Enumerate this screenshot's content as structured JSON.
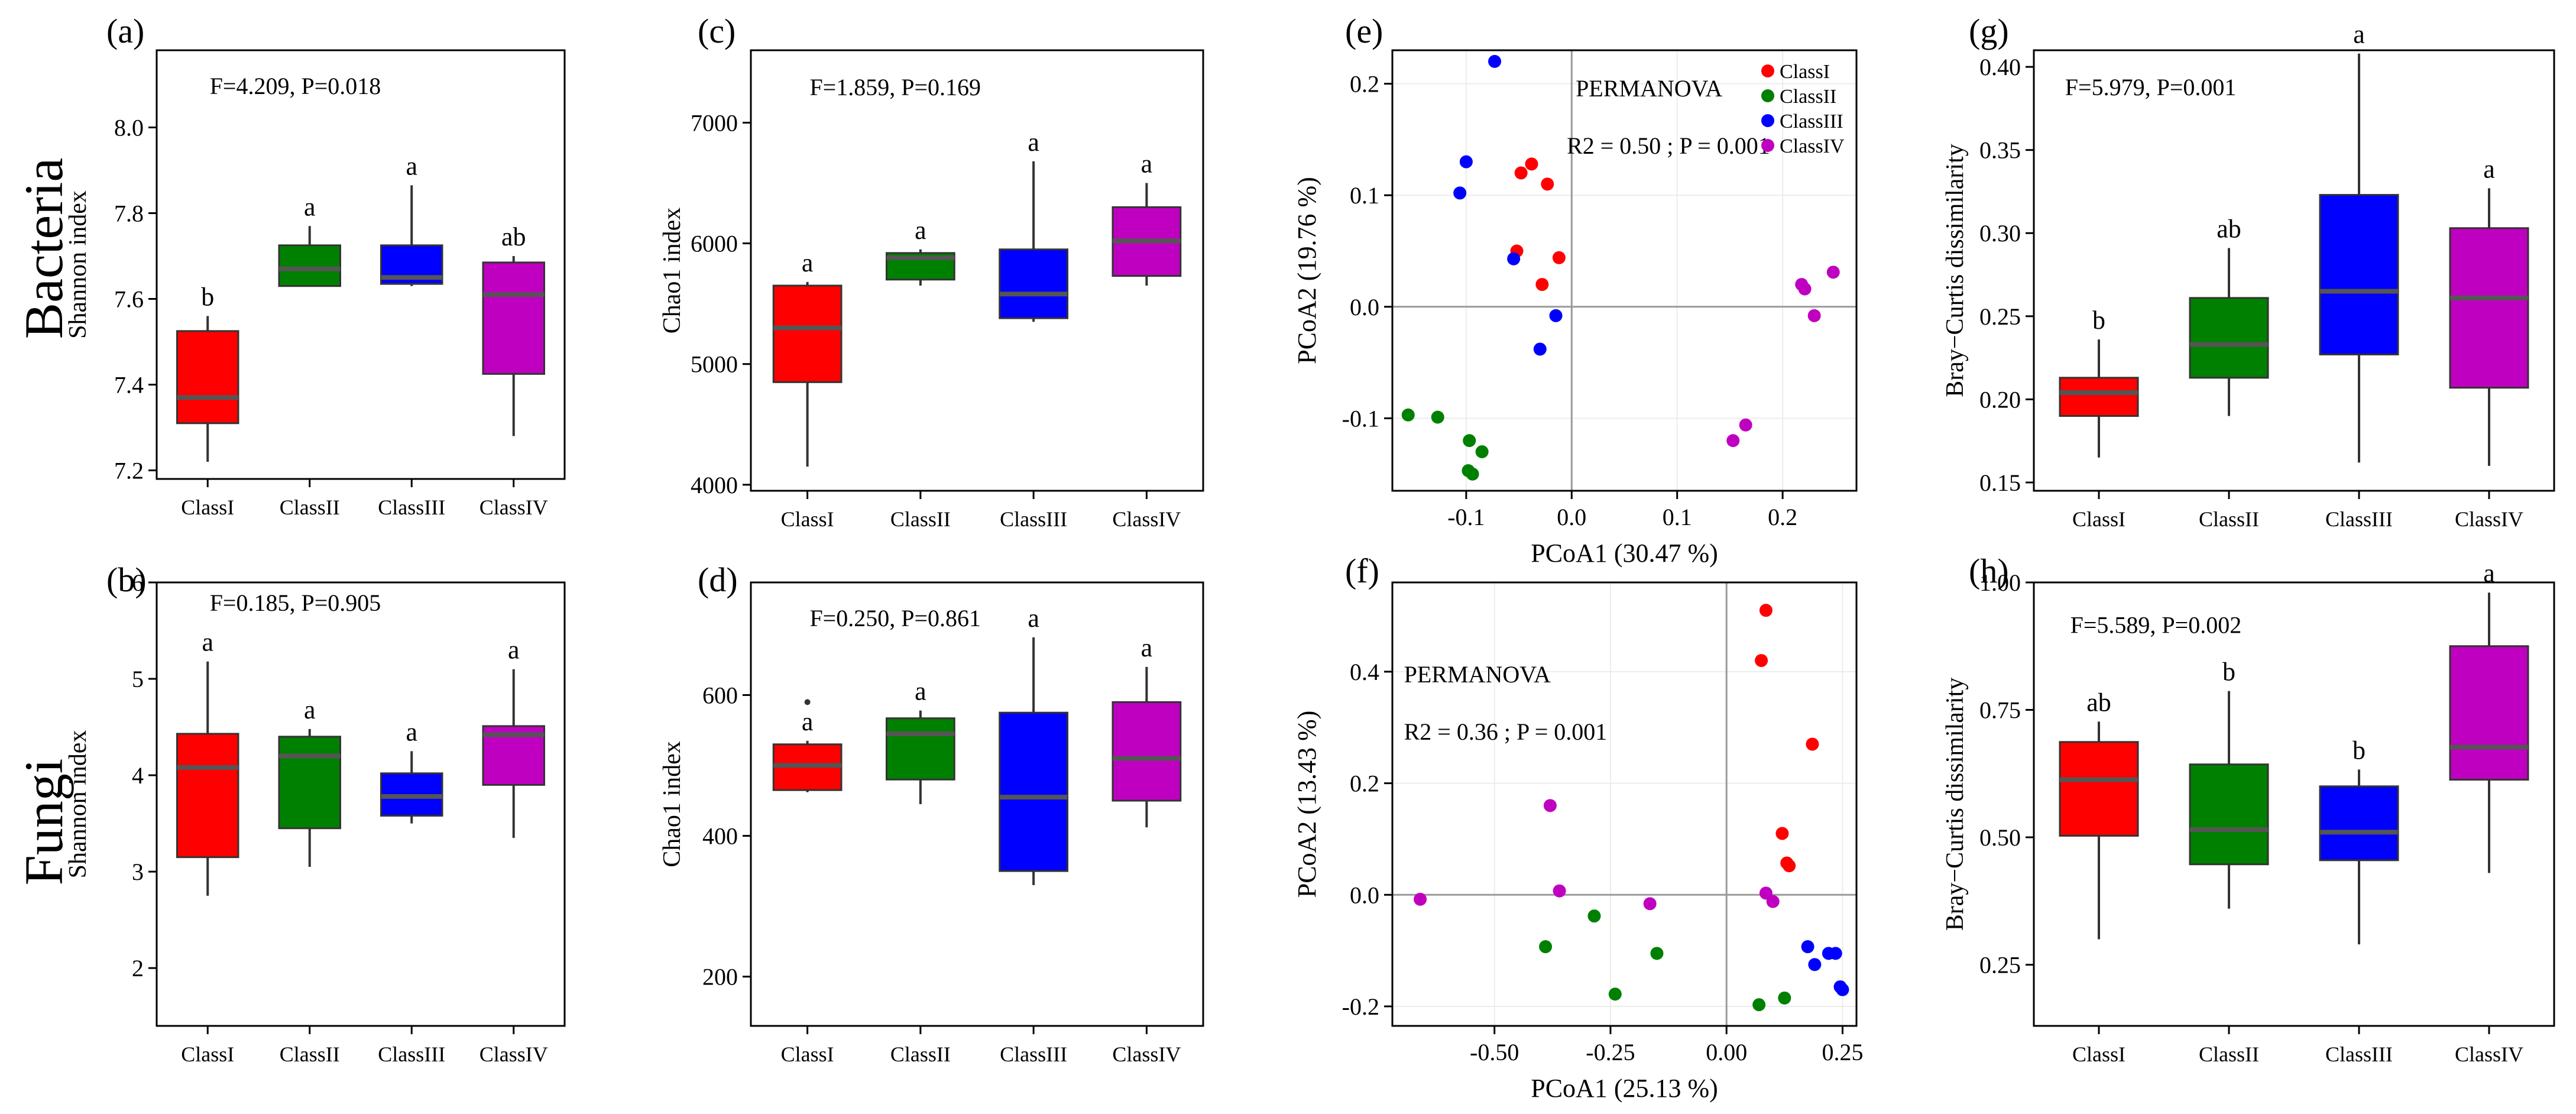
{
  "row_labels": [
    {
      "id": "bacteria",
      "text": "Bacteria"
    },
    {
      "id": "fungi",
      "text": "Fungi"
    }
  ],
  "colors": {
    "ClassI": "#ff0000",
    "ClassII": "#008000",
    "ClassIII": "#0000ff",
    "ClassIV": "#c000c0"
  },
  "chart_data": [
    {
      "id": "a",
      "panel_label": "(a)",
      "type": "box",
      "ylabel": "Shannon index",
      "xlabel": "",
      "ylim": [
        7.18,
        8.18
      ],
      "yticks": [
        7.2,
        7.4,
        7.6,
        7.8,
        8.0
      ],
      "ytick_labels": [
        "7.2",
        "7.4",
        "7.6",
        "7.8",
        "8.0"
      ],
      "stat": "F=4.209, P=0.018",
      "categories": [
        "ClassI",
        "ClassII",
        "ClassIII",
        "ClassIV"
      ],
      "boxes": [
        {
          "min": 7.22,
          "q1": 7.31,
          "median": 7.37,
          "q3": 7.525,
          "max": 7.56,
          "letter": "b"
        },
        {
          "min": 7.63,
          "q1": 7.63,
          "median": 7.67,
          "q3": 7.725,
          "max": 7.77,
          "letter": "a"
        },
        {
          "min": 7.63,
          "q1": 7.635,
          "median": 7.65,
          "q3": 7.725,
          "max": 7.865,
          "letter": "a"
        },
        {
          "min": 7.28,
          "q1": 7.425,
          "median": 7.61,
          "q3": 7.685,
          "max": 7.7,
          "letter": "ab"
        }
      ]
    },
    {
      "id": "c",
      "panel_label": "(c)",
      "type": "box",
      "ylabel": "Chao1 index",
      "xlabel": "",
      "ylim": [
        3950,
        7600
      ],
      "yticks": [
        4000,
        5000,
        6000,
        7000
      ],
      "ytick_labels": [
        "4000",
        "5000",
        "6000",
        "7000"
      ],
      "stat": "F=1.859, P=0.169",
      "categories": [
        "ClassI",
        "ClassII",
        "ClassIII",
        "ClassIV"
      ],
      "boxes": [
        {
          "min": 4150,
          "q1": 4850,
          "median": 5300,
          "q3": 5650,
          "max": 5680,
          "letter": "a"
        },
        {
          "min": 5650,
          "q1": 5700,
          "median": 5880,
          "q3": 5920,
          "max": 5950,
          "letter": "a"
        },
        {
          "min": 5350,
          "q1": 5380,
          "median": 5580,
          "q3": 5950,
          "max": 6680,
          "letter": "a"
        },
        {
          "min": 5650,
          "q1": 5730,
          "median": 6020,
          "q3": 6300,
          "max": 6500,
          "letter": "a"
        }
      ]
    },
    {
      "id": "e",
      "panel_label": "(e)",
      "type": "scatter",
      "xlabel": "PCoA1 (30.47 %)",
      "ylabel": "PCoA2 (19.76 %)",
      "xlim": [
        -0.17,
        0.27
      ],
      "ylim": [
        -0.165,
        0.23
      ],
      "xticks": [
        -0.1,
        0.0,
        0.1,
        0.2
      ],
      "xtick_labels": [
        "-0.1",
        "0.0",
        "0.1",
        "0.2"
      ],
      "yticks": [
        -0.1,
        0.0,
        0.1,
        0.2
      ],
      "ytick_labels": [
        "-0.1",
        "0.0",
        "0.1",
        "0.2"
      ],
      "annotation": "PERMANOVA",
      "stat": "R2 = 0.50 ; P = 0.001",
      "legend": [
        "ClassI",
        "ClassII",
        "ClassIII",
        "ClassIV"
      ],
      "legend_position": "top-right",
      "series": [
        {
          "name": "ClassI",
          "points": [
            [
              -0.038,
              0.128
            ],
            [
              -0.048,
              0.12
            ],
            [
              -0.023,
              0.11
            ],
            [
              -0.052,
              0.05
            ],
            [
              -0.012,
              0.044
            ],
            [
              -0.028,
              0.02
            ]
          ]
        },
        {
          "name": "ClassII",
          "points": [
            [
              -0.155,
              -0.097
            ],
            [
              -0.127,
              -0.099
            ],
            [
              -0.097,
              -0.12
            ],
            [
              -0.085,
              -0.13
            ],
            [
              -0.098,
              -0.147
            ],
            [
              -0.094,
              -0.15
            ]
          ]
        },
        {
          "name": "ClassIII",
          "points": [
            [
              -0.073,
              0.22
            ],
            [
              -0.1,
              0.13
            ],
            [
              -0.106,
              0.102
            ],
            [
              -0.055,
              0.043
            ],
            [
              -0.015,
              -0.008
            ],
            [
              -0.03,
              -0.038
            ]
          ]
        },
        {
          "name": "ClassIV",
          "points": [
            [
              0.248,
              0.031
            ],
            [
              0.218,
              0.02
            ],
            [
              0.221,
              0.016
            ],
            [
              0.23,
              -0.008
            ],
            [
              0.165,
              -0.106
            ],
            [
              0.153,
              -0.12
            ]
          ]
        }
      ]
    },
    {
      "id": "g",
      "panel_label": "(g)",
      "type": "box",
      "ylabel": "Bray−Curtis dissimilarity",
      "xlabel": "",
      "ylim": [
        0.145,
        0.41
      ],
      "yticks": [
        0.15,
        0.2,
        0.25,
        0.3,
        0.35,
        0.4
      ],
      "ytick_labels": [
        "0.15",
        "0.20",
        "0.25",
        "0.30",
        "0.35",
        "0.40"
      ],
      "stat": "F=5.979, P=0.001",
      "categories": [
        "ClassI",
        "ClassII",
        "ClassIII",
        "ClassIV"
      ],
      "boxes": [
        {
          "min": 0.165,
          "q1": 0.19,
          "median": 0.204,
          "q3": 0.213,
          "max": 0.236,
          "letter": "b"
        },
        {
          "min": 0.19,
          "q1": 0.213,
          "median": 0.233,
          "q3": 0.261,
          "max": 0.291,
          "letter": "ab"
        },
        {
          "min": 0.162,
          "q1": 0.227,
          "median": 0.265,
          "q3": 0.323,
          "max": 0.408,
          "letter": "a"
        },
        {
          "min": 0.16,
          "q1": 0.207,
          "median": 0.261,
          "q3": 0.303,
          "max": 0.327,
          "letter": "a"
        }
      ]
    },
    {
      "id": "b",
      "panel_label": "(b)",
      "type": "box",
      "ylabel": "Shannon index",
      "xlabel": "",
      "ylim": [
        1.4,
        6.0
      ],
      "yticks": [
        2,
        3,
        4,
        5,
        6
      ],
      "ytick_labels": [
        "2",
        "3",
        "4",
        "5",
        "6"
      ],
      "stat": "F=0.185, P=0.905",
      "categories": [
        "ClassI",
        "ClassII",
        "ClassIII",
        "ClassIV"
      ],
      "boxes": [
        {
          "min": 2.75,
          "q1": 3.15,
          "median": 4.08,
          "q3": 4.43,
          "max": 5.18,
          "letter": "a"
        },
        {
          "min": 3.05,
          "q1": 3.45,
          "median": 4.2,
          "q3": 4.4,
          "max": 4.48,
          "letter": "a"
        },
        {
          "min": 3.5,
          "q1": 3.58,
          "median": 3.78,
          "q3": 4.02,
          "max": 4.25,
          "letter": "a"
        },
        {
          "min": 3.35,
          "q1": 3.9,
          "median": 4.42,
          "q3": 4.51,
          "max": 5.1,
          "letter": "a"
        }
      ]
    },
    {
      "id": "d",
      "panel_label": "(d)",
      "type": "box",
      "ylabel": "Chao1 index",
      "xlabel": "",
      "ylim": [
        130,
        760
      ],
      "yticks": [
        200,
        400,
        600
      ],
      "ytick_labels": [
        "200",
        "400",
        "600"
      ],
      "stat": "F=0.250, P=0.861",
      "categories": [
        "ClassI",
        "ClassII",
        "ClassIII",
        "ClassIV"
      ],
      "boxes": [
        {
          "min": 462,
          "q1": 465,
          "median": 500,
          "q3": 530,
          "max": 535,
          "outliers": [
            590
          ],
          "letter": "a"
        },
        {
          "min": 445,
          "q1": 480,
          "median": 545,
          "q3": 567,
          "max": 578,
          "letter": "a"
        },
        {
          "min": 330,
          "q1": 350,
          "median": 455,
          "q3": 575,
          "max": 682,
          "letter": "a"
        },
        {
          "min": 412,
          "q1": 450,
          "median": 510,
          "q3": 590,
          "max": 640,
          "letter": "a"
        }
      ]
    },
    {
      "id": "f",
      "panel_label": "(f)",
      "type": "scatter",
      "xlabel": "PCoA1 (25.13 %)",
      "ylabel": "PCoA2 (13.43 %)",
      "xlim": [
        -0.72,
        0.28
      ],
      "ylim": [
        -0.235,
        0.56
      ],
      "xticks": [
        -0.5,
        -0.25,
        0.0,
        0.25
      ],
      "xtick_labels": [
        "-0.50",
        "-0.25",
        "0.00",
        "0.25"
      ],
      "yticks": [
        -0.2,
        0.0,
        0.2,
        0.4
      ],
      "ytick_labels": [
        "-0.2",
        "0.0",
        "0.2",
        "0.4"
      ],
      "annotation": "PERMANOVA",
      "stat": "R2 = 0.36 ; P = 0.001",
      "series": [
        {
          "name": "ClassI",
          "points": [
            [
              0.085,
              0.51
            ],
            [
              0.075,
              0.42
            ],
            [
              0.185,
              0.27
            ],
            [
              0.12,
              0.11
            ],
            [
              0.13,
              0.057
            ],
            [
              0.135,
              0.052
            ]
          ]
        },
        {
          "name": "ClassII",
          "points": [
            [
              -0.39,
              -0.093
            ],
            [
              -0.285,
              -0.038
            ],
            [
              -0.15,
              -0.105
            ],
            [
              -0.24,
              -0.178
            ],
            [
              0.125,
              -0.185
            ],
            [
              0.07,
              -0.197
            ]
          ]
        },
        {
          "name": "ClassIII",
          "points": [
            [
              0.175,
              -0.093
            ],
            [
              0.22,
              -0.105
            ],
            [
              0.235,
              -0.105
            ],
            [
              0.19,
              -0.125
            ],
            [
              0.245,
              -0.165
            ],
            [
              0.25,
              -0.17
            ]
          ]
        },
        {
          "name": "ClassIV",
          "points": [
            [
              -0.38,
              0.16
            ],
            [
              -0.66,
              -0.008
            ],
            [
              -0.36,
              0.007
            ],
            [
              -0.165,
              -0.016
            ],
            [
              0.085,
              0.003
            ],
            [
              0.1,
              -0.012
            ]
          ]
        }
      ]
    },
    {
      "id": "h",
      "panel_label": "(h)",
      "type": "box",
      "ylabel": "Bray−Curtis dissimilarity",
      "xlabel": "",
      "ylim": [
        0.13,
        1.0
      ],
      "yticks": [
        0.25,
        0.5,
        0.75,
        1.0
      ],
      "ytick_labels": [
        "0.25",
        "0.50",
        "0.75",
        "1.00"
      ],
      "stat": "F=5.589, P=0.002",
      "categories": [
        "ClassI",
        "ClassII",
        "ClassIII",
        "ClassIV"
      ],
      "boxes": [
        {
          "min": 0.3,
          "q1": 0.503,
          "median": 0.613,
          "q3": 0.687,
          "max": 0.727,
          "letter": "ab"
        },
        {
          "min": 0.36,
          "q1": 0.447,
          "median": 0.515,
          "q3": 0.643,
          "max": 0.787,
          "letter": "b"
        },
        {
          "min": 0.29,
          "q1": 0.455,
          "median": 0.51,
          "q3": 0.6,
          "max": 0.633,
          "letter": "b"
        },
        {
          "min": 0.43,
          "q1": 0.613,
          "median": 0.677,
          "q3": 0.875,
          "max": 0.98,
          "letter": "a"
        }
      ]
    }
  ]
}
